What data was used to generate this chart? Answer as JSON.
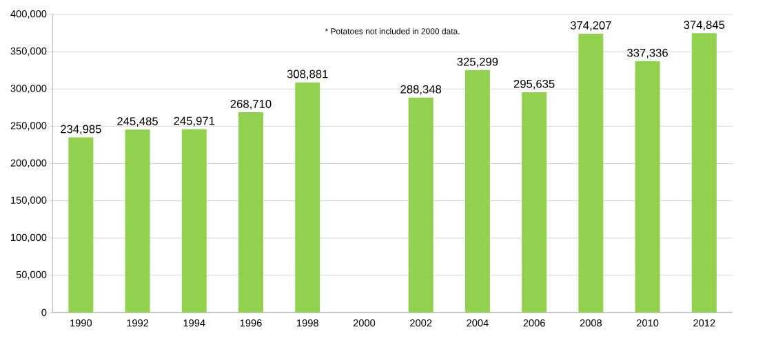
{
  "chart_data": {
    "type": "bar",
    "categories": [
      "1990",
      "1992",
      "1994",
      "1996",
      "1998",
      "2000",
      "2002",
      "2004",
      "2006",
      "2008",
      "2010",
      "2012"
    ],
    "values": [
      234985,
      245485,
      245971,
      268710,
      308881,
      null,
      288348,
      325299,
      295635,
      374207,
      337336,
      374845
    ],
    "value_labels": [
      "234,985",
      "245,485",
      "245,971",
      "268,710",
      "308,881",
      null,
      "288,348",
      "325,299",
      "295,635",
      "374,207",
      "337,336",
      "374,845"
    ],
    "color": "#92d050",
    "ylim": [
      0,
      400000
    ],
    "yticks": [
      0,
      {
        "value": 50000,
        "label": "50,000"
      },
      {
        "value": 100000,
        "label": "100,000"
      },
      {
        "value": 150000,
        "label": "150,000"
      },
      {
        "value": 200000,
        "label": "200,000"
      },
      {
        "value": 250000,
        "label": "250,000"
      },
      {
        "value": 300000,
        "label": "300,000"
      },
      {
        "value": 350000,
        "label": "350,000"
      },
      {
        "value": 400000,
        "label": "400,000"
      }
    ],
    "grid": "y",
    "annotations": [
      "* Potatoes not included in 2000 data."
    ]
  }
}
